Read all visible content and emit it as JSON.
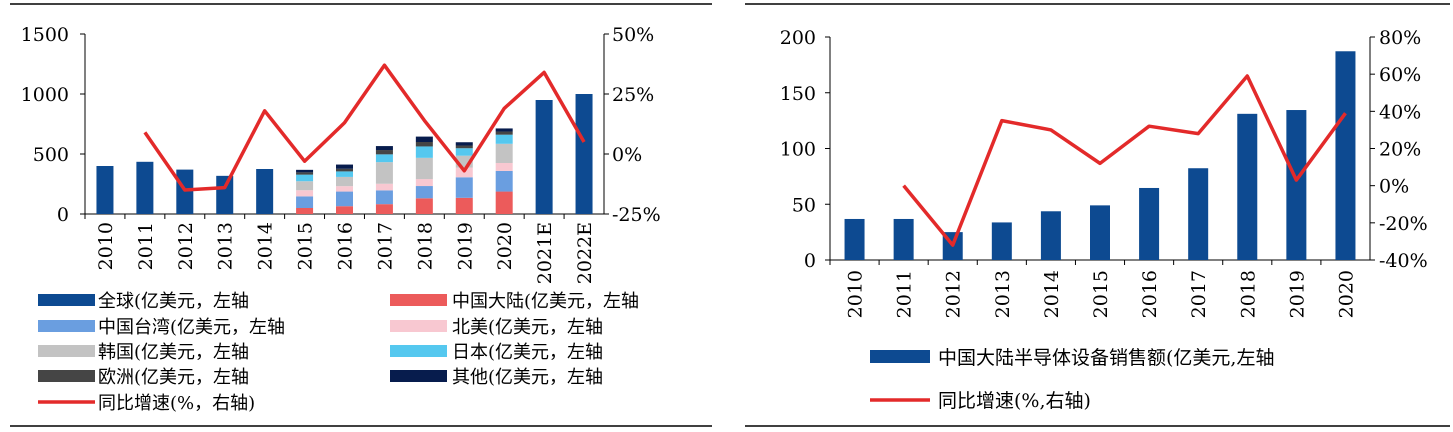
{
  "chart_data": [
    {
      "type": "bar",
      "stacked": true,
      "categories": [
        "2010",
        "2011",
        "2012",
        "2013",
        "2014",
        "2015",
        "2016",
        "2017",
        "2018",
        "2019",
        "2020",
        "2021E",
        "2022E"
      ],
      "y_left": {
        "ylim": [
          0,
          1500
        ],
        "ticks": [
          "0",
          "500",
          "1000",
          "1500"
        ]
      },
      "y_right": {
        "ylim": [
          -25,
          50
        ],
        "ticks": [
          "-25%",
          "0%",
          "25%",
          "50%"
        ]
      },
      "series": [
        {
          "name": "全球(亿美元，左轴",
          "kind": "bar",
          "color": "#0d4a91",
          "values": [
            400,
            435,
            370,
            318,
            375,
            null,
            null,
            null,
            null,
            null,
            null,
            950,
            1000
          ]
        },
        {
          "name": "中国大陆(亿美元，左轴",
          "kind": "stack",
          "color": "#ec5b5b",
          "values": [
            null,
            null,
            null,
            null,
            null,
            50,
            65,
            82,
            131,
            135,
            187,
            null,
            null
          ]
        },
        {
          "name": "中国台湾(亿美元，左轴",
          "kind": "stack",
          "color": "#6a9ee0",
          "values": [
            null,
            null,
            null,
            null,
            null,
            97,
            122,
            115,
            102,
            171,
            172,
            null,
            null
          ]
        },
        {
          "name": "北美(亿美元，左轴",
          "kind": "stack",
          "color": "#f8c8d1",
          "values": [
            null,
            null,
            null,
            null,
            null,
            51,
            45,
            55,
            58,
            81,
            66,
            null,
            null
          ]
        },
        {
          "name": "韩国(亿美元，左轴",
          "kind": "stack",
          "color": "#c3c3c3",
          "values": [
            null,
            null,
            null,
            null,
            null,
            75,
            77,
            180,
            177,
            99,
            160,
            null,
            null
          ]
        },
        {
          "name": "日本(亿美元，左轴",
          "kind": "stack",
          "color": "#55c8ef",
          "values": [
            null,
            null,
            null,
            null,
            null,
            55,
            46,
            65,
            95,
            62,
            76,
            null,
            null
          ]
        },
        {
          "name": "欧洲(亿美元，左轴",
          "kind": "stack",
          "color": "#454545",
          "values": [
            null,
            null,
            null,
            null,
            null,
            19,
            22,
            36,
            37,
            23,
            26,
            null,
            null
          ]
        },
        {
          "name": "其他(亿美元，左轴",
          "kind": "stack",
          "color": "#071c4d",
          "values": [
            null,
            null,
            null,
            null,
            null,
            21,
            35,
            33,
            45,
            27,
            26,
            null,
            null
          ]
        },
        {
          "name": "同比增速(%，右轴)",
          "kind": "line",
          "axis": "right",
          "color": "#e32a2a",
          "values": [
            null,
            9,
            -15,
            -14,
            18,
            -3,
            13,
            37,
            14,
            -7,
            19,
            34,
            5
          ]
        }
      ],
      "legend_position": "bottom"
    },
    {
      "type": "bar",
      "categories": [
        "2010",
        "2011",
        "2012",
        "2013",
        "2014",
        "2015",
        "2016",
        "2017",
        "2018",
        "2019",
        "2020"
      ],
      "y_left": {
        "ylim": [
          0,
          200
        ],
        "ticks": [
          "0",
          "50",
          "100",
          "150",
          "200"
        ]
      },
      "y_right": {
        "ylim": [
          -40,
          80
        ],
        "ticks": [
          "-40%",
          "-20%",
          "0%",
          "20%",
          "40%",
          "60%",
          "80%"
        ]
      },
      "series": [
        {
          "name": "中国大陆半导体设备销售额(亿美元,左轴",
          "kind": "bar",
          "color": "#0d4a91",
          "values": [
            36.8,
            36.8,
            25,
            33.7,
            43.7,
            49,
            64.6,
            82.3,
            131.1,
            134.5,
            187.2
          ]
        },
        {
          "name": "同比增速(%,右轴)",
          "kind": "line",
          "axis": "right",
          "color": "#e32a2a",
          "values": [
            null,
            0,
            -32,
            35,
            30,
            12,
            32,
            28,
            59,
            3,
            39
          ]
        }
      ],
      "legend_position": "bottom"
    }
  ]
}
